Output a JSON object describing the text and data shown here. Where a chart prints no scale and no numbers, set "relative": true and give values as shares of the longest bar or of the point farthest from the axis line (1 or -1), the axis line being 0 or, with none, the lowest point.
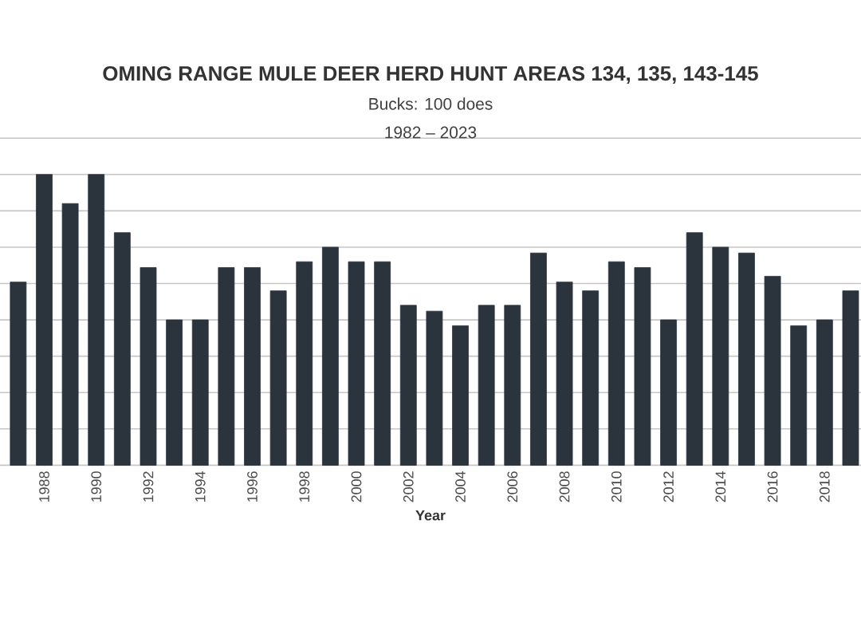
{
  "chart_data": {
    "type": "bar",
    "title": "OMING RANGE MULE DEER HERD HUNT AREAS 134, 135, 143-145",
    "subtitle": "Bucks: 100 does",
    "annotations": [
      "1982 – 2023"
    ],
    "xlabel": "Year",
    "categories": [
      null,
      "1988",
      null,
      "1990",
      null,
      "1992",
      null,
      "1994",
      null,
      "1996",
      null,
      "1998",
      null,
      "2000",
      null,
      "2002",
      null,
      "2004",
      null,
      "2006",
      null,
      "2008",
      null,
      "2010",
      null,
      "2012",
      null,
      "2014",
      null,
      "2016",
      null,
      "2018",
      null
    ],
    "values": [
      0.63,
      1,
      0.9,
      1,
      0.8,
      0.68,
      0.5,
      0.5,
      0.68,
      0.68,
      0.6,
      0.7,
      0.75,
      0.7,
      0.7,
      0.55,
      0.53,
      0.48,
      0.55,
      0.55,
      0.73,
      0.63,
      0.6,
      0.7,
      0.68,
      0.5,
      0.8,
      0.75,
      0.73,
      0.65,
      0.48,
      0.5,
      0.6
    ],
    "color": "#2b333d",
    "relative": true,
    "grid": "y"
  }
}
